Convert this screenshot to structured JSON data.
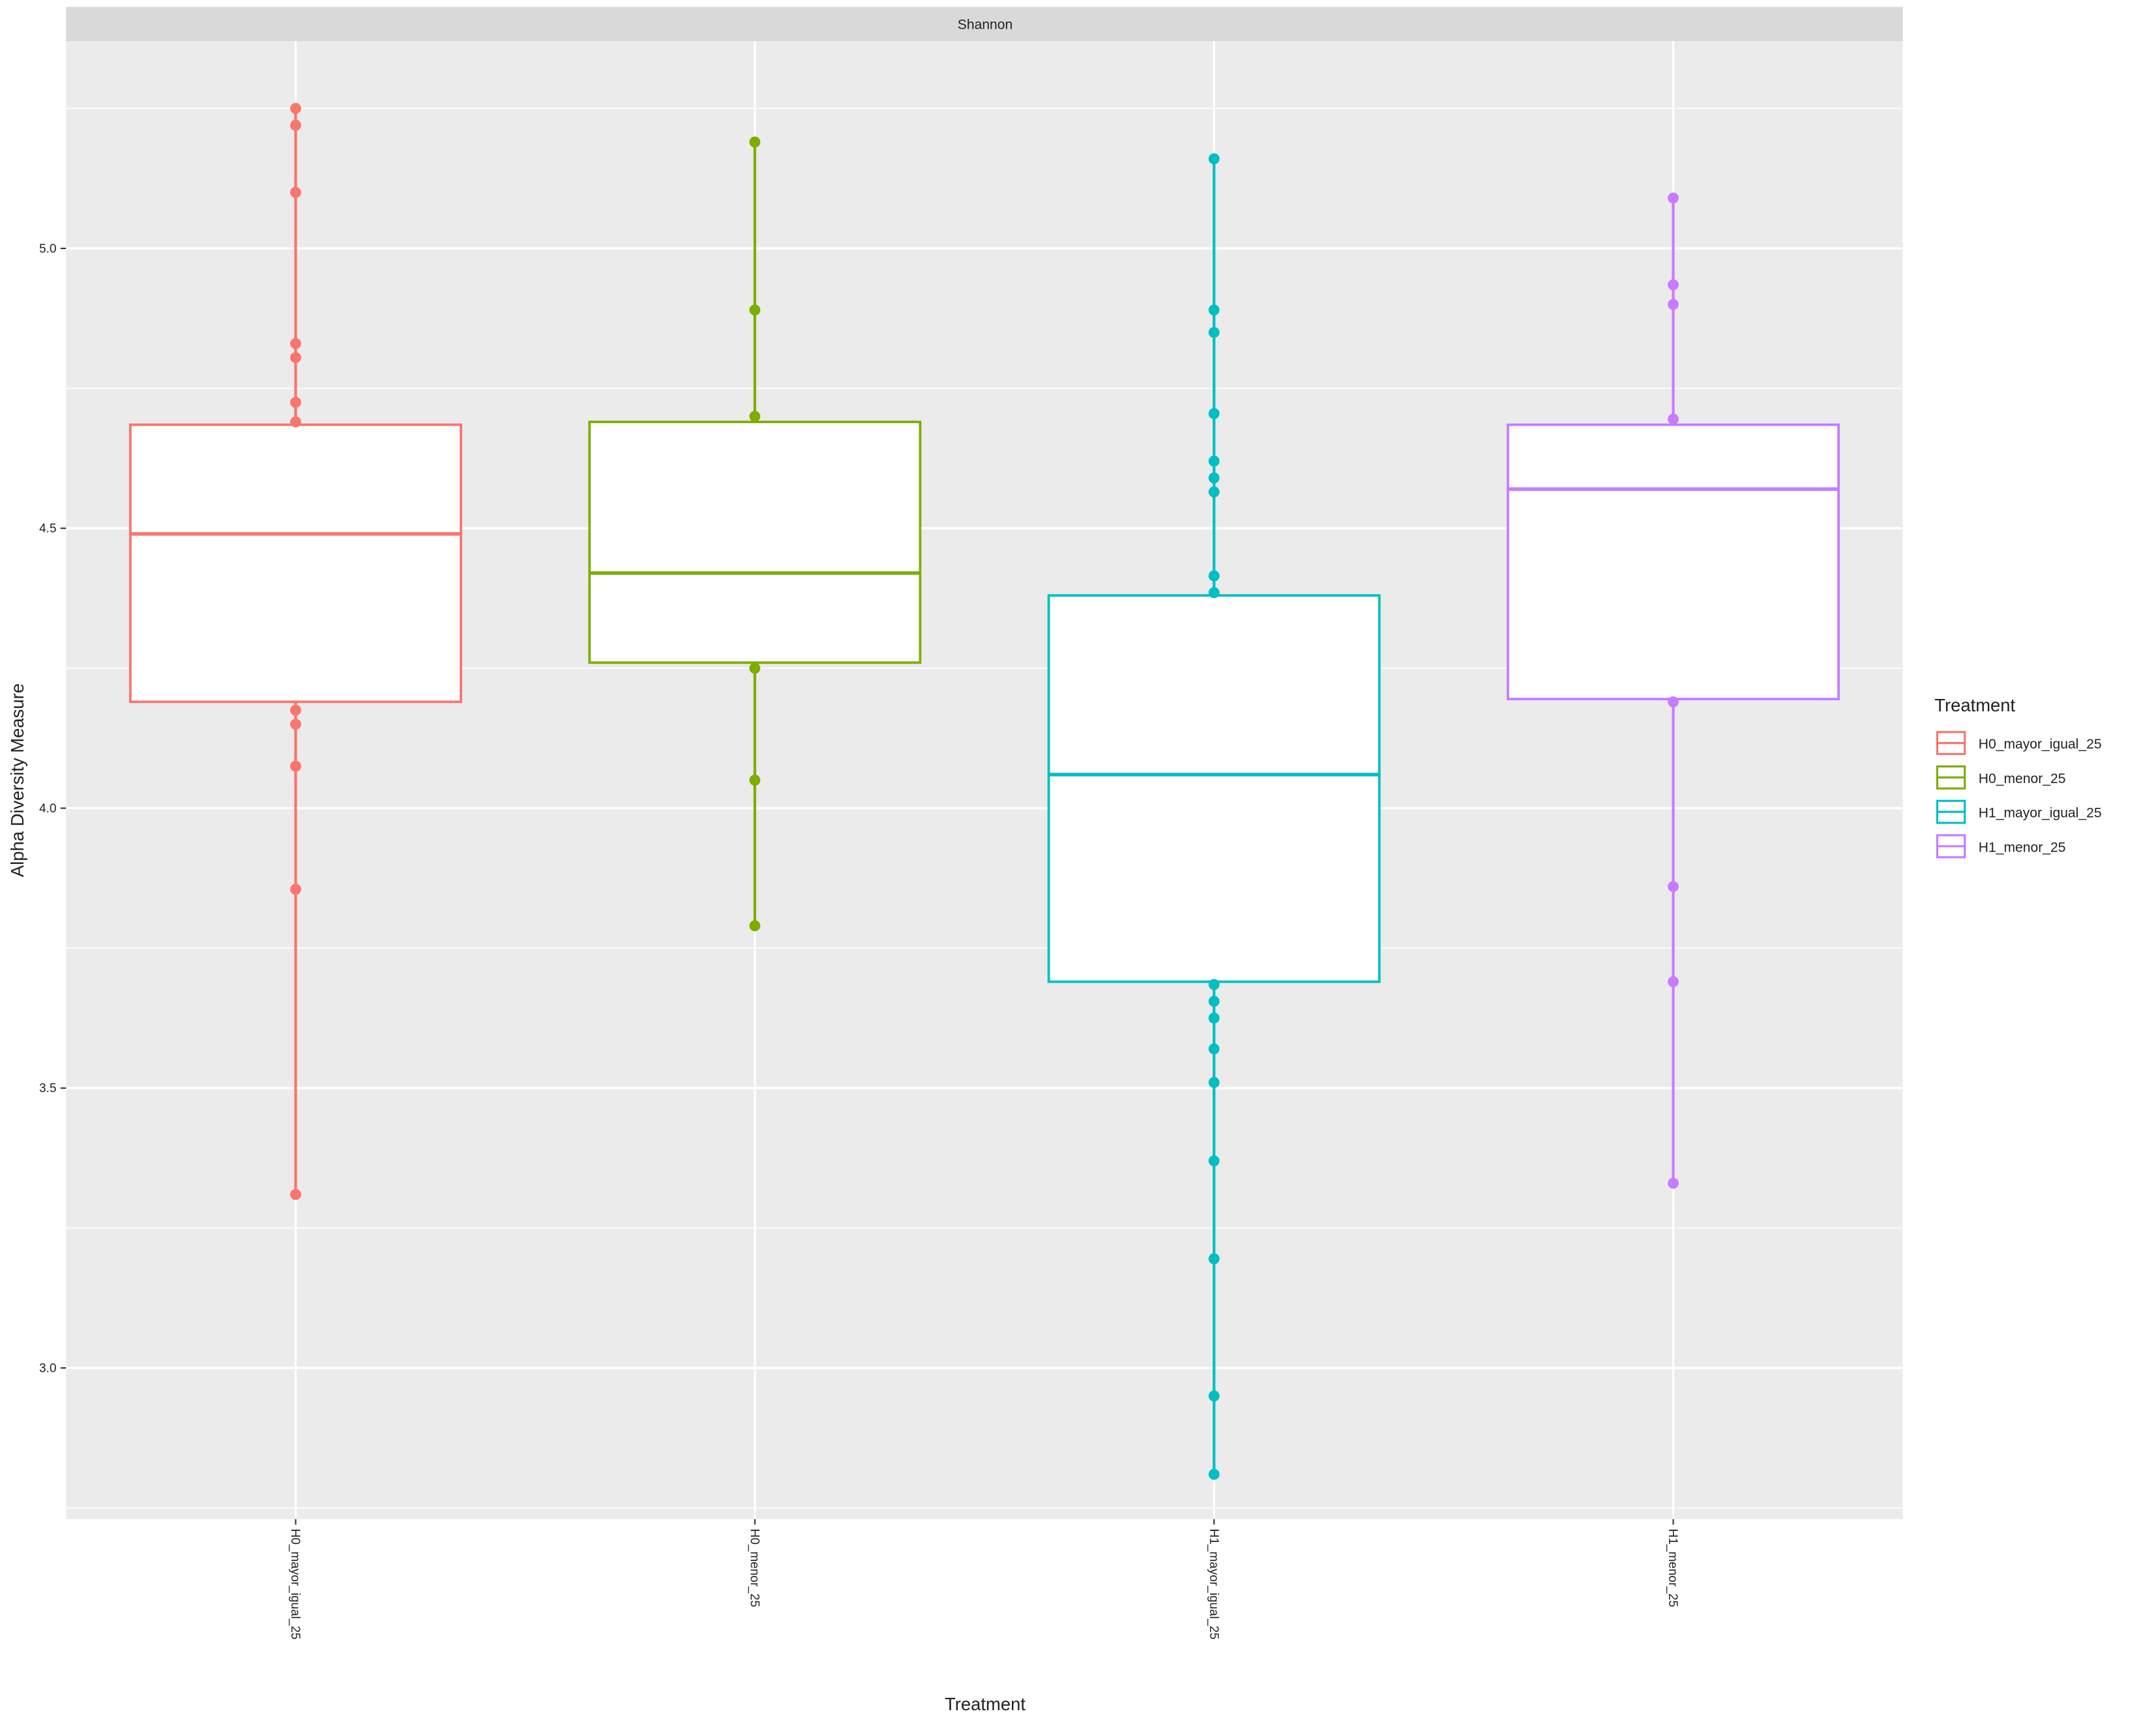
{
  "chart_data": {
    "type": "box",
    "facet_title": "Shannon",
    "xlabel": "Treatment",
    "ylabel": "Alpha Diversity Measure",
    "ylim": [
      2.73,
      5.37
    ],
    "yticks": [
      3.0,
      3.5,
      4.0,
      4.5,
      5.0
    ],
    "ytick_labels": [
      "3.0",
      "3.5",
      "4.0",
      "4.5",
      "5.0"
    ],
    "grid": true,
    "legend": {
      "title": "Treatment",
      "placement": "right"
    },
    "categories": [
      "H0_mayor_igual_25",
      "H0_menor_25",
      "H1_mayor_igual_25",
      "H1_menor_25"
    ],
    "series": [
      {
        "name": "H0_mayor_igual_25",
        "color": "#F8766D",
        "q1": 4.19,
        "median": 4.49,
        "q3": 4.685,
        "points": [
          5.25,
          5.22,
          5.1,
          4.83,
          4.805,
          4.725,
          4.69,
          4.175,
          4.15,
          4.075,
          3.855,
          3.31
        ]
      },
      {
        "name": "H0_menor_25",
        "color": "#7CAE00",
        "q1": 4.26,
        "median": 4.42,
        "q3": 4.69,
        "points": [
          5.19,
          4.89,
          4.7,
          4.25,
          4.05,
          3.79
        ]
      },
      {
        "name": "H1_mayor_igual_25",
        "color": "#00BFC4",
        "q1": 3.69,
        "median": 4.06,
        "q3": 4.38,
        "points": [
          5.16,
          4.89,
          4.85,
          4.705,
          4.62,
          4.59,
          4.565,
          4.415,
          4.385,
          3.685,
          3.655,
          3.625,
          3.57,
          3.51,
          3.37,
          3.195,
          2.95,
          2.81
        ]
      },
      {
        "name": "H1_menor_25",
        "color": "#C77CFF",
        "q1": 4.195,
        "median": 4.57,
        "q3": 4.685,
        "points": [
          5.09,
          4.935,
          4.9,
          4.695,
          4.19,
          3.86,
          3.69,
          3.33
        ]
      }
    ]
  }
}
